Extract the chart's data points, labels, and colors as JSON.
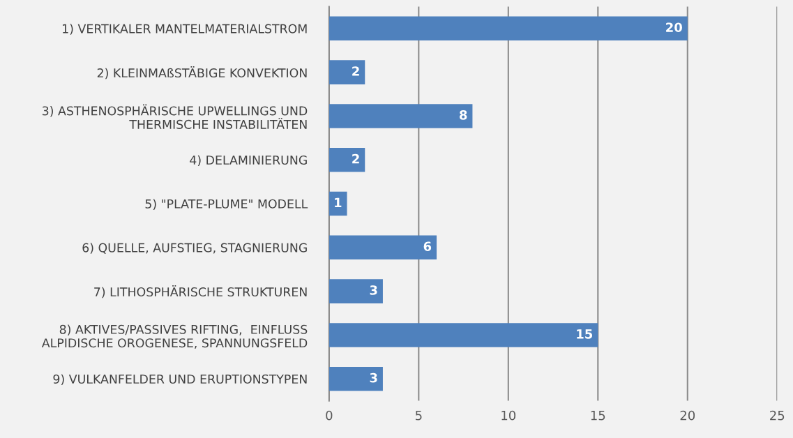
{
  "chart_data": {
    "type": "bar",
    "orientation": "horizontal",
    "categories": [
      "1) VERTIKALER MANTELMATERIALSTROM",
      "2) KLEINMAßSTÄBIGE KONVEKTION",
      "3) ASTHENOSPHÄRISCHE UPWELLINGS UND\nTHERMISCHE INSTABILITÄTEN",
      "4) DELAMINIERUNG",
      "5) \"PLATE-PLUME\" MODELL",
      "6) QUELLE, AUFSTIEG, STAGNIERUNG",
      "7) LITHOSPHÄRISCHE STRUKTUREN",
      "8) AKTIVES/PASSIVES RIFTING,  EINFLUSS\nALPIDISCHE OROGENESE, SPANNUNGSFELD",
      "9) VULKANFELDER UND ERUPTIONSTYPEN"
    ],
    "values": [
      20,
      2,
      8,
      2,
      1,
      6,
      3,
      15,
      3
    ],
    "color": "#4f81bd",
    "xlim": [
      0,
      25
    ],
    "xticks": [
      0,
      5,
      10,
      15,
      20,
      25
    ],
    "grid": "x",
    "data_labels": true,
    "legend": false
  }
}
